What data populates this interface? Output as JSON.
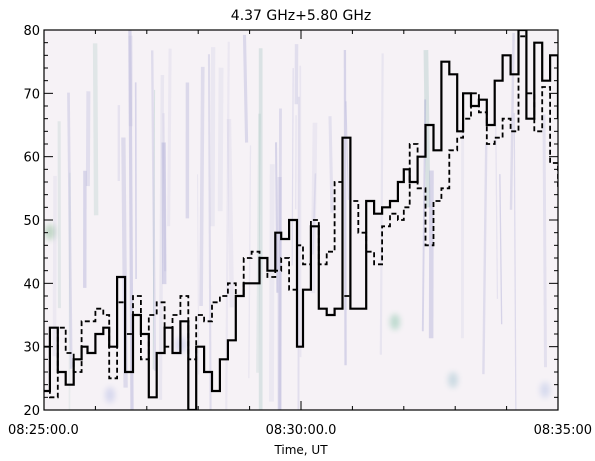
{
  "chart_data": {
    "type": "line",
    "title": "4.37 GHz+5.80 GHz",
    "xlabel": "Time, UT",
    "ylabel": "",
    "x_ticks": [
      "08:25:00.0",
      "08:30:00.0",
      "08:35:00"
    ],
    "x_range_minutes": [
      0,
      10
    ],
    "ylim": [
      20,
      80
    ],
    "y_ticks": [
      20,
      30,
      40,
      50,
      60,
      70,
      80
    ],
    "grid": false,
    "background": "dynamic spectrum (faint)",
    "series": [
      {
        "style": "solid",
        "color": "#000000",
        "points": [
          [
            0.0,
            23
          ],
          [
            0.15,
            33
          ],
          [
            0.35,
            26
          ],
          [
            0.55,
            24
          ],
          [
            0.75,
            28
          ],
          [
            0.95,
            30
          ],
          [
            1.1,
            29
          ],
          [
            1.3,
            32
          ],
          [
            1.5,
            33
          ],
          [
            1.65,
            30
          ],
          [
            1.85,
            41
          ],
          [
            2.05,
            26
          ],
          [
            2.25,
            35
          ],
          [
            2.45,
            32
          ],
          [
            2.65,
            22
          ],
          [
            2.85,
            29
          ],
          [
            3.05,
            33
          ],
          [
            3.25,
            29
          ],
          [
            3.45,
            34
          ],
          [
            3.65,
            20
          ],
          [
            3.85,
            30
          ],
          [
            4.05,
            26
          ],
          [
            4.25,
            23
          ],
          [
            4.45,
            28
          ],
          [
            4.65,
            31
          ],
          [
            4.85,
            38
          ],
          [
            5.05,
            40
          ],
          [
            5.25,
            40
          ],
          [
            5.45,
            44
          ],
          [
            5.65,
            42
          ],
          [
            5.85,
            48
          ],
          [
            6.0,
            47
          ],
          [
            6.2,
            50
          ],
          [
            6.4,
            30
          ],
          [
            6.55,
            39
          ],
          [
            6.75,
            49
          ],
          [
            6.95,
            36
          ],
          [
            7.15,
            35
          ],
          [
            7.35,
            36
          ],
          [
            7.55,
            63
          ],
          [
            7.75,
            36
          ],
          [
            7.95,
            36
          ],
          [
            8.15,
            53
          ],
          [
            8.35,
            51
          ],
          [
            8.55,
            52
          ],
          [
            8.75,
            53
          ],
          [
            8.95,
            56
          ],
          [
            9.1,
            58
          ],
          [
            9.25,
            56
          ],
          [
            9.45,
            60
          ],
          [
            9.65,
            65
          ],
          [
            9.85,
            61
          ],
          [
            10.05,
            75
          ],
          [
            10.25,
            73
          ],
          [
            10.45,
            64
          ],
          [
            10.6,
            70
          ],
          [
            10.8,
            68
          ],
          [
            11.0,
            69
          ],
          [
            11.2,
            65
          ],
          [
            11.4,
            72
          ],
          [
            11.6,
            76
          ],
          [
            11.8,
            73
          ],
          [
            12.0,
            80
          ],
          [
            12.2,
            66
          ],
          [
            12.4,
            78
          ],
          [
            12.6,
            72
          ],
          [
            12.8,
            76
          ],
          [
            13.0,
            66
          ]
        ]
      },
      {
        "style": "dashed",
        "color": "#000000",
        "points": [
          [
            0.0,
            30
          ],
          [
            0.15,
            22
          ],
          [
            0.35,
            33
          ],
          [
            0.55,
            29
          ],
          [
            0.75,
            26
          ],
          [
            0.95,
            34
          ],
          [
            1.1,
            34
          ],
          [
            1.3,
            36
          ],
          [
            1.5,
            35
          ],
          [
            1.65,
            25
          ],
          [
            1.85,
            37
          ],
          [
            2.05,
            32
          ],
          [
            2.25,
            38
          ],
          [
            2.45,
            28
          ],
          [
            2.65,
            35
          ],
          [
            2.85,
            37
          ],
          [
            3.05,
            30
          ],
          [
            3.25,
            35
          ],
          [
            3.45,
            38
          ],
          [
            3.65,
            28
          ],
          [
            3.85,
            35
          ],
          [
            4.05,
            34
          ],
          [
            4.25,
            37
          ],
          [
            4.45,
            38
          ],
          [
            4.65,
            40
          ],
          [
            4.85,
            38
          ],
          [
            5.05,
            44
          ],
          [
            5.25,
            45
          ],
          [
            5.45,
            44
          ],
          [
            5.65,
            41
          ],
          [
            5.85,
            42
          ],
          [
            6.0,
            44
          ],
          [
            6.2,
            39
          ],
          [
            6.4,
            46
          ],
          [
            6.55,
            43
          ],
          [
            6.75,
            50
          ],
          [
            6.95,
            43
          ],
          [
            7.15,
            45
          ],
          [
            7.35,
            56
          ],
          [
            7.55,
            38
          ],
          [
            7.75,
            53
          ],
          [
            7.95,
            48
          ],
          [
            8.15,
            45
          ],
          [
            8.35,
            43
          ],
          [
            8.55,
            49
          ],
          [
            8.75,
            51
          ],
          [
            8.95,
            50
          ],
          [
            9.1,
            52
          ],
          [
            9.25,
            62
          ],
          [
            9.45,
            55
          ],
          [
            9.65,
            46
          ],
          [
            9.85,
            53
          ],
          [
            10.05,
            55
          ],
          [
            10.25,
            61
          ],
          [
            10.45,
            63
          ],
          [
            10.6,
            66
          ],
          [
            10.8,
            70
          ],
          [
            11.0,
            67
          ],
          [
            11.2,
            62
          ],
          [
            11.4,
            63
          ],
          [
            11.6,
            66
          ],
          [
            11.8,
            64
          ],
          [
            12.0,
            79
          ],
          [
            12.2,
            70
          ],
          [
            12.4,
            64
          ],
          [
            12.6,
            71
          ],
          [
            12.8,
            59
          ],
          [
            13.0,
            55
          ]
        ]
      }
    ]
  }
}
